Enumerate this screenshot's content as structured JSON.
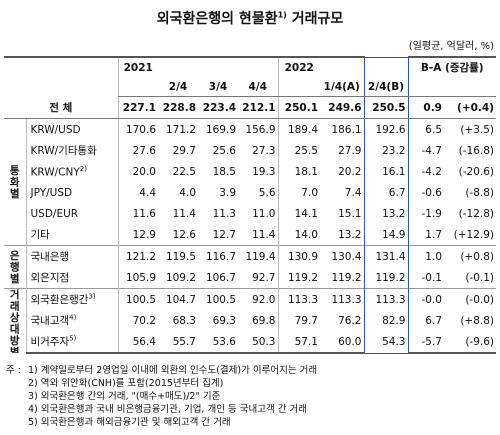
{
  "header": {
    "title": "외국환은행의 현물환",
    "title_note": "1)",
    "title_suffix": "거래규모",
    "unit": "(일평균, 억달러, %)"
  },
  "table": {
    "columns": {
      "year1": "2021",
      "q1": [
        "2/4",
        "3/4",
        "4/4"
      ],
      "year2": "2022",
      "q2": [
        "1/4(A)",
        "2/4(B)"
      ],
      "change": "B-A (증감률)"
    },
    "total": {
      "label": "전 체",
      "values": [
        "227.1",
        "228.8",
        "223.4",
        "212.1",
        "250.1",
        "249.6",
        "250.5",
        "0.9",
        "(+0.4)"
      ]
    },
    "groups": [
      {
        "label": "통화별",
        "rows": [
          {
            "label": "KRW/USD",
            "values": [
              "170.6",
              "171.2",
              "169.9",
              "156.9",
              "189.4",
              "186.1",
              "192.6",
              "6.5",
              "(+3.5)"
            ]
          },
          {
            "label": "KRW/기타통화",
            "values": [
              "27.6",
              "29.7",
              "25.6",
              "27.3",
              "25.5",
              "27.9",
              "23.2",
              "-4.7",
              "(-16.8)"
            ]
          },
          {
            "label": "KRW/CNY",
            "note": "2)",
            "values": [
              "20.0",
              "22.5",
              "18.5",
              "19.3",
              "18.1",
              "20.2",
              "16.1",
              "-4.2",
              "(-20.6)"
            ]
          },
          {
            "label": "JPY/USD",
            "values": [
              "4.4",
              "4.0",
              "3.9",
              "5.6",
              "7.0",
              "7.4",
              "6.7",
              "-0.6",
              "(-8.8)"
            ]
          },
          {
            "label": "USD/EUR",
            "values": [
              "11.6",
              "11.4",
              "11.3",
              "11.0",
              "14.1",
              "15.1",
              "13.2",
              "-1.9",
              "(-12.8)"
            ]
          },
          {
            "label": "기타",
            "values": [
              "12.9",
              "12.6",
              "12.7",
              "11.4",
              "14.0",
              "13.2",
              "14.9",
              "1.7",
              "(+12.9)"
            ]
          }
        ]
      },
      {
        "label": "은행별",
        "rows": [
          {
            "label": "국내은행",
            "values": [
              "121.2",
              "119.5",
              "116.7",
              "119.4",
              "130.9",
              "130.4",
              "131.4",
              "1.0",
              "(+0.8)"
            ]
          },
          {
            "label": "외은지점",
            "values": [
              "105.9",
              "109.2",
              "106.7",
              "92.7",
              "119.2",
              "119.2",
              "119.2",
              "-0.1",
              "(-0.1)"
            ]
          }
        ]
      },
      {
        "label": "거래상대방별",
        "rows": [
          {
            "label": "외국환은행간",
            "note": "3)",
            "values": [
              "100.5",
              "104.7",
              "100.5",
              "92.0",
              "113.3",
              "113.3",
              "113.3",
              "-0.0",
              "(-0.0)"
            ]
          },
          {
            "label": "국내고객",
            "note": "4)",
            "values": [
              "70.2",
              "68.3",
              "69.3",
              "69.8",
              "79.7",
              "76.2",
              "82.9",
              "6.7",
              "(+8.8)"
            ]
          },
          {
            "label": "비거주자",
            "note": "5)",
            "values": [
              "56.4",
              "55.7",
              "53.6",
              "50.3",
              "57.1",
              "60.0",
              "54.3",
              "-5.7",
              "(-9.6)"
            ]
          }
        ]
      }
    ]
  },
  "footnotes": {
    "lead": "주 :",
    "items": [
      "1) 계약일로부터 2영업일 이내에 외환의 인수도(결제)가 이루어지는 거래",
      "2) 역외 위안화(CNH)를 포함(2015년부터 집계)",
      "3) 외국환은행 간의 거래, \"(매수+매도)/2\" 기준",
      "4) 외국환은행과 국내 비은행금융기관, 기업, 개인 등 국내고객 간 거래",
      "5) 외국환은행과 해외금융기관 및 해외고객 간 거래"
    ]
  }
}
